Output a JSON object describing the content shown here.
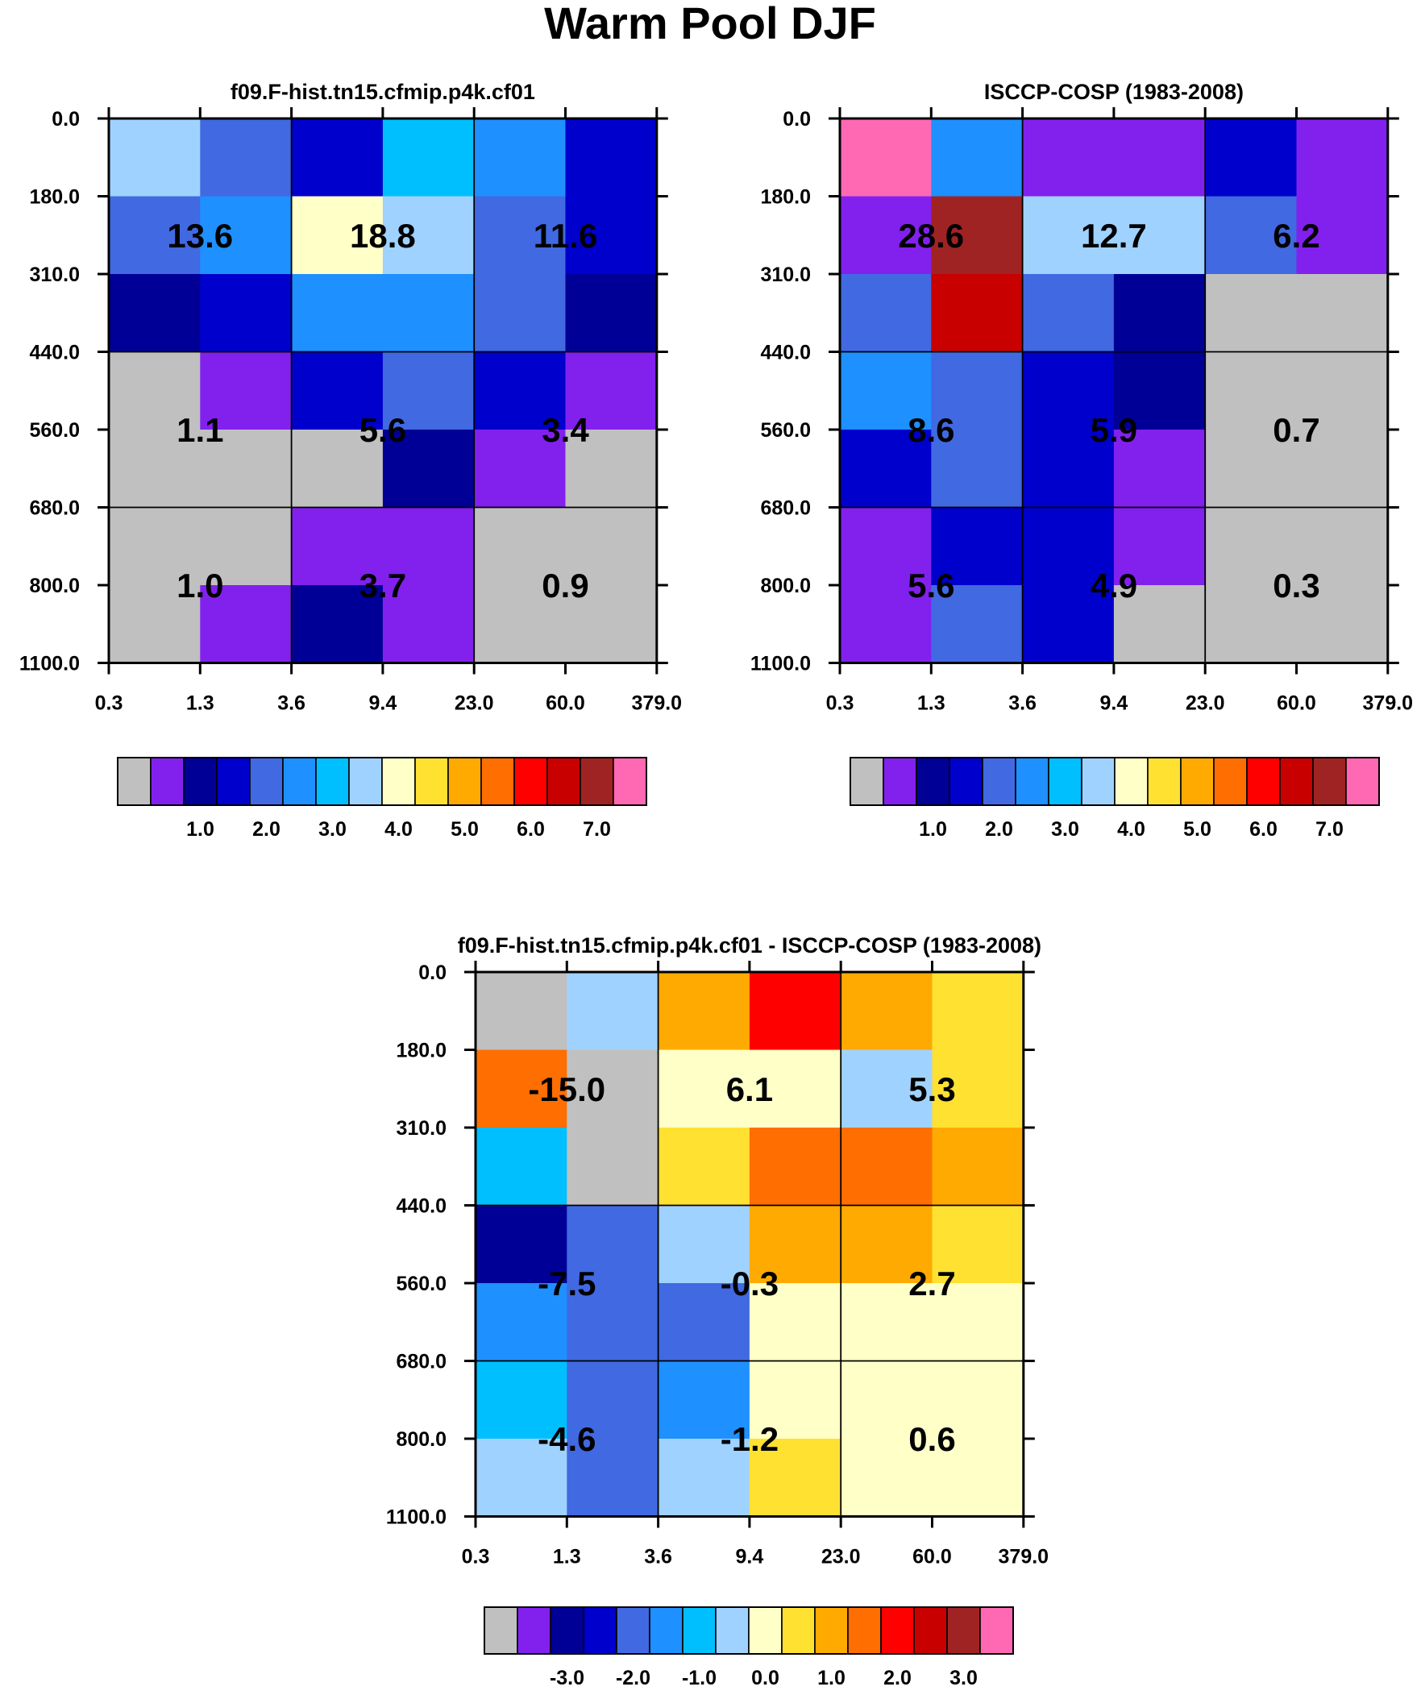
{
  "figure_title": "Warm Pool DJF",
  "colors": {
    "palette": [
      "#c0c0c0",
      "#8221ee",
      "#000096",
      "#0000cd",
      "#4169e1",
      "#1e90ff",
      "#00bfff",
      "#a0d2ff",
      "#ffffc8",
      "#ffe132",
      "#ffaa00",
      "#ff6e00",
      "#ff0000",
      "#c80000",
      "#a02323",
      "#ff69b4"
    ]
  },
  "chart_data": [
    {
      "type": "heatmap",
      "title": "f09.F-hist.tn15.cfmip.p4k.cf01",
      "x_ticks": [
        "0.3",
        "1.3",
        "3.6",
        "9.4",
        "23.0",
        "60.0",
        "379.0"
      ],
      "y_ticks": [
        "0.0",
        "180.0",
        "310.0",
        "440.0",
        "560.0",
        "680.0",
        "800.0",
        "1100.0"
      ],
      "color_index_grid": [
        [
          7,
          4,
          3,
          6,
          5,
          3
        ],
        [
          4,
          5,
          8,
          7,
          4,
          3
        ],
        [
          2,
          3,
          5,
          5,
          4,
          2
        ],
        [
          0,
          1,
          3,
          4,
          3,
          1
        ],
        [
          0,
          0,
          0,
          2,
          1,
          0
        ],
        [
          0,
          0,
          1,
          1,
          0,
          0
        ],
        [
          0,
          1,
          2,
          1,
          0,
          0
        ]
      ],
      "box_values": [
        [
          "13.6",
          "18.8",
          "11.6"
        ],
        [
          "1.1",
          "5.6",
          "3.4"
        ],
        [
          "1.0",
          "3.7",
          "0.9"
        ]
      ],
      "colorbar_labels": [
        "1.0",
        "2.0",
        "3.0",
        "4.0",
        "5.0",
        "6.0",
        "7.0"
      ]
    },
    {
      "type": "heatmap",
      "title": "ISCCP-COSP (1983-2008)",
      "x_ticks": [
        "0.3",
        "1.3",
        "3.6",
        "9.4",
        "23.0",
        "60.0",
        "379.0"
      ],
      "y_ticks": [
        "0.0",
        "180.0",
        "310.0",
        "440.0",
        "560.0",
        "680.0",
        "800.0",
        "1100.0"
      ],
      "color_index_grid": [
        [
          15,
          5,
          1,
          1,
          3,
          1
        ],
        [
          1,
          14,
          7,
          7,
          4,
          1
        ],
        [
          4,
          13,
          4,
          2,
          0,
          0
        ],
        [
          5,
          4,
          3,
          2,
          0,
          0
        ],
        [
          3,
          4,
          3,
          1,
          0,
          0
        ],
        [
          1,
          3,
          3,
          1,
          0,
          0
        ],
        [
          1,
          4,
          3,
          0,
          0,
          0
        ]
      ],
      "box_values": [
        [
          "28.6",
          "12.7",
          "6.2"
        ],
        [
          "8.6",
          "5.9",
          "0.7"
        ],
        [
          "5.6",
          "4.9",
          "0.3"
        ]
      ],
      "colorbar_labels": [
        "1.0",
        "2.0",
        "3.0",
        "4.0",
        "5.0",
        "6.0",
        "7.0"
      ]
    },
    {
      "type": "heatmap",
      "title": "f09.F-hist.tn15.cfmip.p4k.cf01 - ISCCP-COSP (1983-2008)",
      "x_ticks": [
        "0.3",
        "1.3",
        "3.6",
        "9.4",
        "23.0",
        "60.0",
        "379.0"
      ],
      "y_ticks": [
        "0.0",
        "180.0",
        "310.0",
        "440.0",
        "560.0",
        "680.0",
        "800.0",
        "1100.0"
      ],
      "color_index_grid": [
        [
          0,
          7,
          10,
          12,
          10,
          9
        ],
        [
          11,
          0,
          8,
          8,
          7,
          9
        ],
        [
          6,
          0,
          9,
          11,
          11,
          10
        ],
        [
          2,
          4,
          7,
          10,
          10,
          9
        ],
        [
          5,
          4,
          4,
          8,
          8,
          8
        ],
        [
          6,
          4,
          5,
          8,
          8,
          8
        ],
        [
          7,
          4,
          7,
          9,
          8,
          8
        ]
      ],
      "box_values": [
        [
          "-15.0",
          "6.1",
          "5.3"
        ],
        [
          "-7.5",
          "-0.3",
          "2.7"
        ],
        [
          "-4.6",
          "-1.2",
          "0.6"
        ]
      ],
      "colorbar_labels": [
        "-3.0",
        "-2.0",
        "-1.0",
        "0.0",
        "1.0",
        "2.0",
        "3.0"
      ]
    }
  ]
}
